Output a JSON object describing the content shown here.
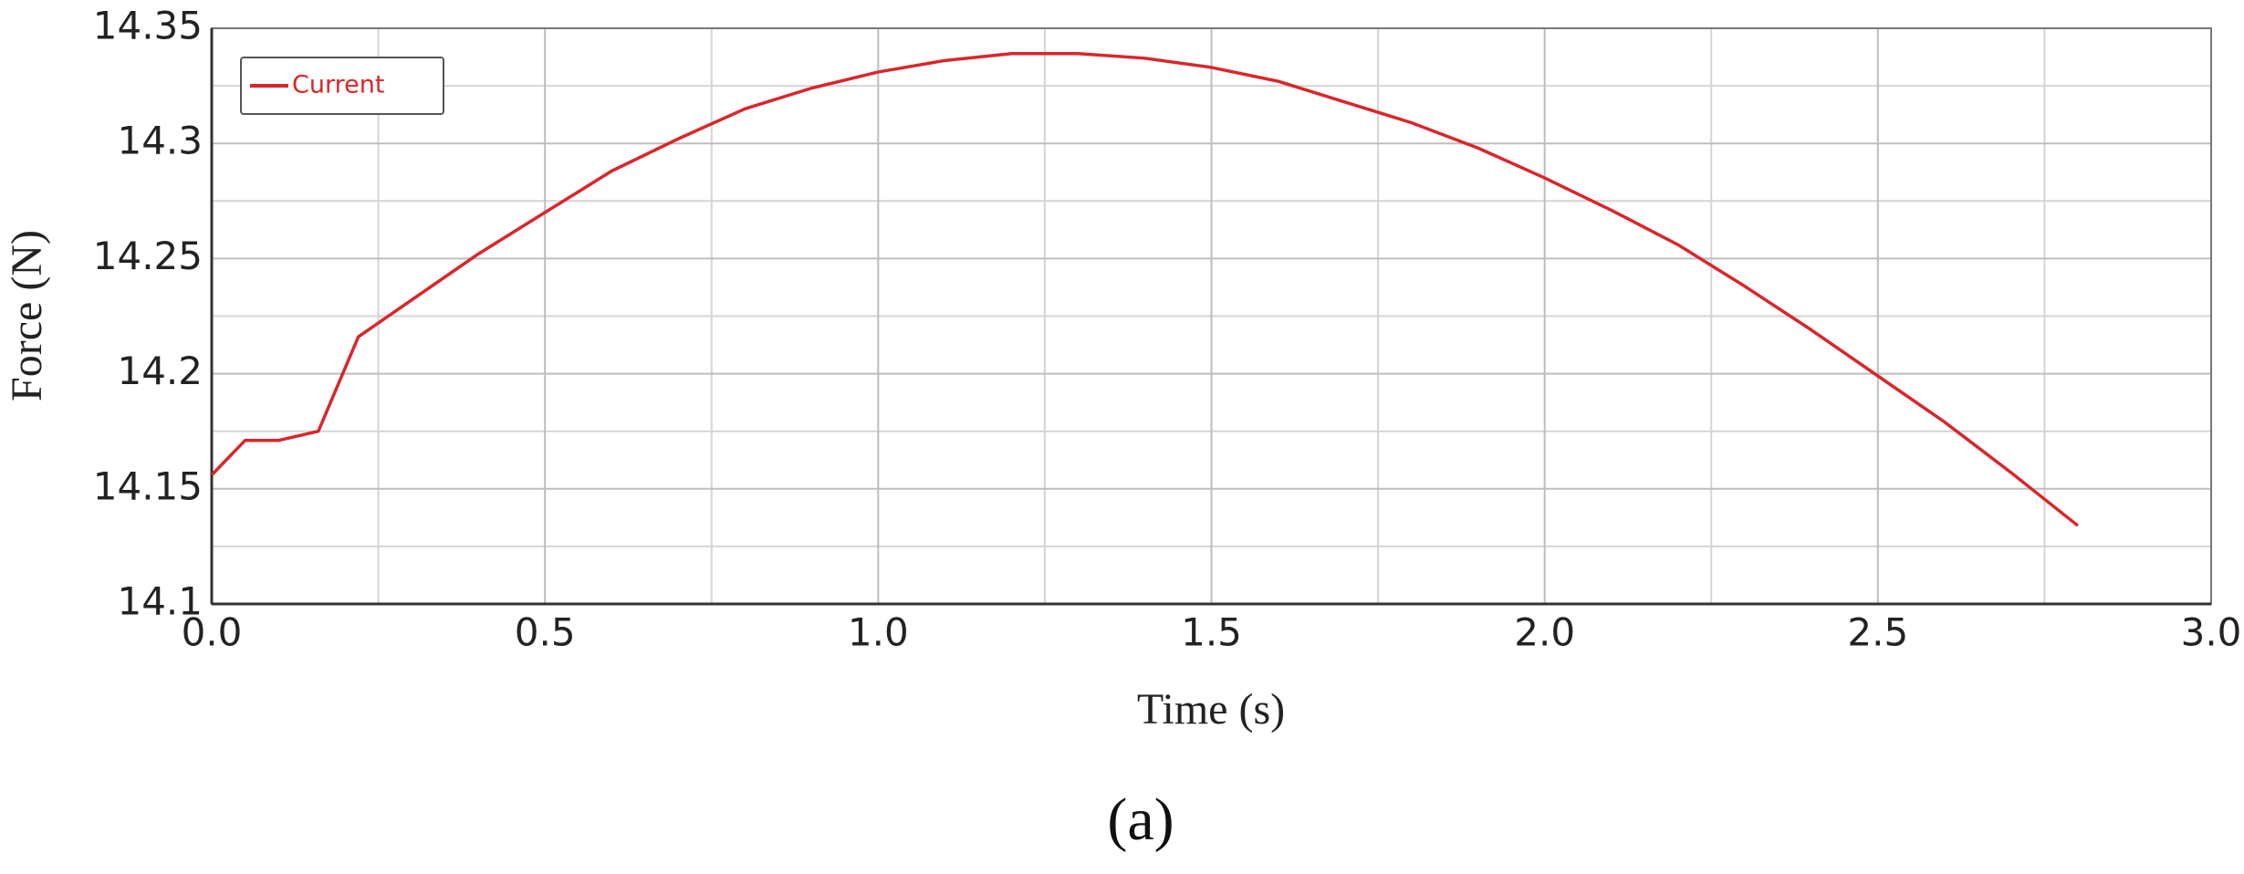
{
  "chart_data": {
    "type": "line",
    "xlabel": "Time (s)",
    "ylabel": "Force (N)",
    "caption": "(a)",
    "x": [
      0,
      0.05,
      0.1,
      0.16,
      0.22,
      0.3,
      0.4,
      0.5,
      0.6,
      0.7,
      0.8,
      0.9,
      1.0,
      1.1,
      1.2,
      1.3,
      1.4,
      1.5,
      1.6,
      1.7,
      1.8,
      1.9,
      2.0,
      2.1,
      2.2,
      2.3,
      2.4,
      2.5,
      2.6,
      2.7,
      2.8
    ],
    "series": [
      {
        "name": "Current",
        "color": "#d9262b",
        "values": [
          14.156,
          14.171,
          14.171,
          14.175,
          14.216,
          14.232,
          14.252,
          14.27,
          14.288,
          14.302,
          14.315,
          14.324,
          14.331,
          14.336,
          14.339,
          14.339,
          14.337,
          14.333,
          14.327,
          14.318,
          14.309,
          14.298,
          14.285,
          14.271,
          14.256,
          14.238,
          14.219,
          14.199,
          14.179,
          14.157,
          14.134
        ]
      }
    ],
    "xlim": [
      0,
      3
    ],
    "ylim": [
      14.1,
      14.35
    ],
    "xticks": [
      {
        "value": 0,
        "label": "0.0"
      },
      0.5,
      {
        "value": 1,
        "label": "1.0"
      },
      1.5,
      {
        "value": 2,
        "label": "2.0"
      },
      2.5,
      {
        "value": 3,
        "label": "3.0"
      }
    ],
    "yticks": [
      14.1,
      14.15,
      14.2,
      14.25,
      14.3,
      14.35
    ],
    "grid": true,
    "minor_grid": true,
    "legend": "upper left"
  }
}
